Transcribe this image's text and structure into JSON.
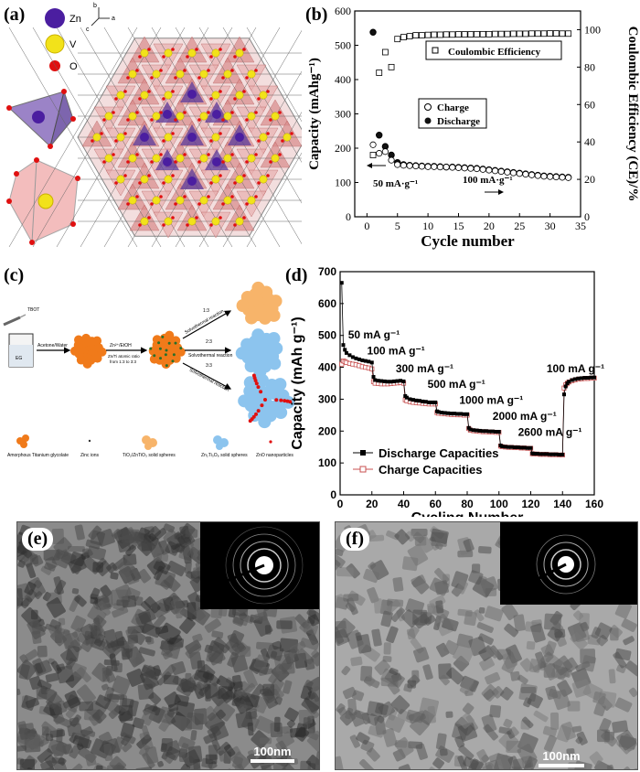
{
  "panels": {
    "a": {
      "label": "(a)",
      "legend": [
        {
          "name": "Zn",
          "color": "#4b1ea0"
        },
        {
          "name": "V",
          "color": "#f2e21a"
        },
        {
          "name": "O",
          "color": "#e01010"
        }
      ],
      "axes_glyphs": {
        "a": "a",
        "b": "b",
        "c": "c"
      }
    },
    "b": {
      "label": "(b)"
    },
    "c": {
      "label": "(c)",
      "tbot": "TBOT",
      "solvent": "Acetone/Water",
      "eg": "EG",
      "zn_step": "Zn²⁺/EtOH",
      "ratio_line1": "Zn/Ti atomic ratio",
      "ratio_line2": "from 1:3 to 3:3",
      "branch_top_ratio": "1:3",
      "branch_top_label": "Solvothermal reaction",
      "branch_mid_ratio": "2:3",
      "branch_mid_label": "Solvothermal reaction",
      "branch_bot_ratio": "3:3",
      "branch_bot_label": "Solvothermal reaction",
      "legend": [
        "Amorphous Titanium glycolate",
        "Zinc ions",
        "TiO₂/ZnTiO₃ solid spheres",
        "Zn₂Ti₃O₈ solid spheres",
        "ZnO nanoparticles"
      ]
    },
    "d": {
      "label": "(d)"
    },
    "e": {
      "label": "(e)",
      "scale": "100nm"
    },
    "f": {
      "label": "(f)",
      "scale": "100nm"
    }
  },
  "chart_data": [
    {
      "id": "b",
      "type": "scatter",
      "xlabel": "Cycle number",
      "ylabel": "Capacity (mAhg⁻¹)",
      "y2label": "Coulombic Efficiency (CE)/%",
      "xlim": [
        -2,
        35
      ],
      "ylim": [
        0,
        600
      ],
      "y2lim": [
        0,
        110
      ],
      "xticks": [
        0,
        5,
        10,
        15,
        20,
        25,
        30,
        35
      ],
      "yticks": [
        0,
        100,
        200,
        300,
        400,
        500,
        600
      ],
      "y2ticks": [
        0,
        20,
        40,
        60,
        80,
        100
      ],
      "annotations": [
        "50 mA·g⁻¹",
        "100 mA·g⁻¹"
      ],
      "legend_charge": "Charge",
      "legend_discharge": "Discharge",
      "legend_ce": "Coulombic Efficiency",
      "series": [
        {
          "name": "Charge",
          "x": [
            1,
            2,
            3,
            4,
            5,
            6,
            7,
            8,
            9,
            10,
            11,
            12,
            13,
            14,
            15,
            16,
            17,
            18,
            19,
            20,
            21,
            22,
            23,
            24,
            25,
            26,
            27,
            28,
            29,
            30,
            31,
            32,
            33
          ],
          "values": [
            210,
            185,
            190,
            165,
            152,
            150,
            149,
            148,
            147,
            146,
            146,
            145,
            145,
            144,
            143,
            142,
            141,
            140,
            138,
            136,
            134,
            132,
            130,
            128,
            126,
            124,
            122,
            120,
            118,
            117,
            116,
            115,
            114
          ]
        },
        {
          "name": "Discharge",
          "x": [
            1,
            2,
            3,
            4,
            5,
            6,
            7,
            8,
            9,
            10,
            11,
            12,
            13,
            14,
            15,
            16,
            17,
            18,
            19,
            20,
            21,
            22,
            23,
            24,
            25,
            26,
            27,
            28,
            29,
            30,
            31,
            32,
            33
          ],
          "values": [
            538,
            238,
            205,
            180,
            158,
            152,
            150,
            149,
            148,
            147,
            147,
            146,
            145,
            145,
            144,
            143,
            142,
            141,
            139,
            137,
            135,
            133,
            131,
            129,
            127,
            125,
            123,
            121,
            119,
            118,
            117,
            116,
            115
          ]
        },
        {
          "name": "Coulombic Efficiency",
          "axis": "right",
          "x": [
            1,
            2,
            3,
            4,
            5,
            6,
            7,
            8,
            9,
            10,
            11,
            12,
            13,
            14,
            15,
            16,
            17,
            18,
            19,
            20,
            21,
            22,
            23,
            24,
            25,
            26,
            27,
            28,
            29,
            30,
            31,
            32,
            33
          ],
          "values": [
            33,
            77,
            88,
            80,
            95,
            96,
            96.5,
            97,
            97,
            97.2,
            97.3,
            97.3,
            97.4,
            97.4,
            97.5,
            97.5,
            97.5,
            97.6,
            97.6,
            97.6,
            97.7,
            97.7,
            97.7,
            97.8,
            97.8,
            97.8,
            97.9,
            97.9,
            97.9,
            98,
            98,
            97.9,
            97.9
          ]
        }
      ]
    },
    {
      "id": "d",
      "type": "line",
      "xlabel": "Cycling Number",
      "ylabel": "Capacity (mAh g⁻¹)",
      "xlim": [
        0,
        160
      ],
      "ylim": [
        0,
        700
      ],
      "xticks": [
        0,
        20,
        40,
        60,
        80,
        100,
        120,
        140,
        160
      ],
      "yticks": [
        0,
        100,
        200,
        300,
        400,
        500,
        600,
        700
      ],
      "annotations": [
        "50 mA g⁻¹",
        "100 mA g⁻¹",
        "300 mA g⁻¹",
        "500 mA g⁻¹",
        "1000 mA g⁻¹",
        "2000 mA g⁻¹",
        "2600 mA g⁻¹",
        "100 mA g⁻¹"
      ],
      "legend_discharge": "Discharge Capacities",
      "legend_charge": "Charge Capacities",
      "series": [
        {
          "name": "Discharge Capacities",
          "x": [
            1,
            2,
            3,
            4,
            6,
            8,
            10,
            12,
            14,
            16,
            18,
            20,
            21,
            22,
            24,
            26,
            28,
            30,
            32,
            34,
            36,
            38,
            40,
            41,
            42,
            44,
            46,
            48,
            50,
            52,
            54,
            56,
            58,
            60,
            61,
            62,
            64,
            66,
            68,
            70,
            72,
            74,
            76,
            78,
            80,
            81,
            82,
            84,
            86,
            88,
            90,
            92,
            94,
            96,
            98,
            100,
            101,
            102,
            104,
            106,
            108,
            110,
            112,
            114,
            116,
            118,
            120,
            121,
            122,
            124,
            126,
            128,
            130,
            132,
            134,
            136,
            138,
            140,
            141,
            142,
            143,
            144,
            146,
            148,
            150,
            152,
            154,
            156,
            158,
            160
          ],
          "values": [
            665,
            470,
            455,
            445,
            438,
            432,
            428,
            425,
            422,
            420,
            418,
            415,
            370,
            360,
            358,
            357,
            356,
            355,
            355,
            356,
            357,
            358,
            356,
            310,
            305,
            300,
            298,
            296,
            295,
            293,
            292,
            290,
            290,
            290,
            262,
            260,
            258,
            257,
            256,
            255,
            255,
            254,
            254,
            253,
            253,
            210,
            205,
            203,
            202,
            201,
            200,
            200,
            199,
            199,
            198,
            198,
            155,
            152,
            151,
            150,
            150,
            149,
            149,
            148,
            148,
            147,
            147,
            130,
            129,
            129,
            128,
            128,
            128,
            127,
            127,
            127,
            126,
            126,
            315,
            340,
            350,
            355,
            360,
            363,
            365,
            366,
            367,
            367,
            368,
            368
          ]
        },
        {
          "name": "Charge Capacities",
          "x": [
            1,
            2,
            3,
            4,
            6,
            8,
            10,
            12,
            14,
            16,
            18,
            20,
            21,
            22,
            24,
            26,
            28,
            30,
            32,
            34,
            36,
            38,
            40,
            41,
            42,
            44,
            46,
            48,
            50,
            52,
            54,
            56,
            58,
            60,
            61,
            62,
            64,
            66,
            68,
            70,
            72,
            74,
            76,
            78,
            80,
            81,
            82,
            84,
            86,
            88,
            90,
            92,
            94,
            96,
            98,
            100,
            101,
            102,
            104,
            106,
            108,
            110,
            112,
            114,
            116,
            118,
            120,
            121,
            122,
            124,
            126,
            128,
            130,
            132,
            134,
            136,
            138,
            140,
            141,
            142,
            143,
            144,
            146,
            148,
            150,
            152,
            154,
            156,
            158,
            160
          ],
          "values": [
            410,
            420,
            418,
            415,
            412,
            410,
            408,
            405,
            402,
            400,
            398,
            395,
            355,
            350,
            349,
            348,
            348,
            348,
            349,
            350,
            351,
            352,
            350,
            298,
            295,
            292,
            290,
            289,
            288,
            287,
            286,
            285,
            285,
            285,
            258,
            256,
            255,
            254,
            253,
            252,
            252,
            251,
            251,
            250,
            250,
            208,
            203,
            201,
            200,
            199,
            198,
            198,
            197,
            197,
            196,
            196,
            153,
            151,
            150,
            149,
            149,
            148,
            148,
            147,
            147,
            146,
            146,
            129,
            128,
            128,
            127,
            127,
            127,
            126,
            126,
            126,
            125,
            125,
            335,
            345,
            350,
            354,
            358,
            361,
            363,
            364,
            365,
            365,
            366,
            366
          ]
        }
      ]
    }
  ]
}
